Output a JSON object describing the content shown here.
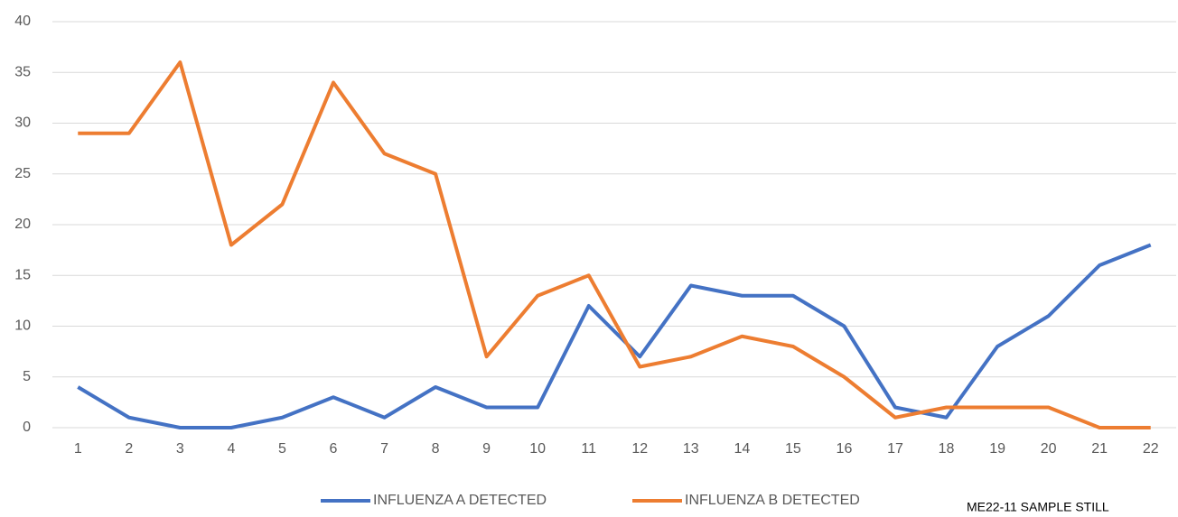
{
  "chart_data": {
    "type": "line",
    "categories": [
      1,
      2,
      3,
      4,
      5,
      6,
      7,
      8,
      9,
      10,
      11,
      12,
      13,
      14,
      15,
      16,
      17,
      18,
      19,
      20,
      21,
      22
    ],
    "series": [
      {
        "name": "INFLUENZA A DETECTED",
        "color": "#4472c4",
        "values": [
          4,
          1,
          0,
          0,
          1,
          3,
          1,
          4,
          2,
          2,
          12,
          7,
          14,
          13,
          13,
          10,
          2,
          1,
          8,
          11,
          16,
          18
        ]
      },
      {
        "name": "INFLUENZA B DETECTED",
        "color": "#ed7d31",
        "values": [
          29,
          29,
          36,
          18,
          22,
          34,
          27,
          25,
          7,
          13,
          15,
          6,
          7,
          9,
          8,
          5,
          1,
          2,
          2,
          2,
          0,
          0
        ]
      }
    ],
    "ylim": [
      0,
      40
    ],
    "yticks": [
      0,
      5,
      10,
      15,
      20,
      25,
      30,
      35,
      40
    ],
    "grid": true,
    "legend": "bottom",
    "annotation": "ME22-11 SAMPLE STILL"
  }
}
